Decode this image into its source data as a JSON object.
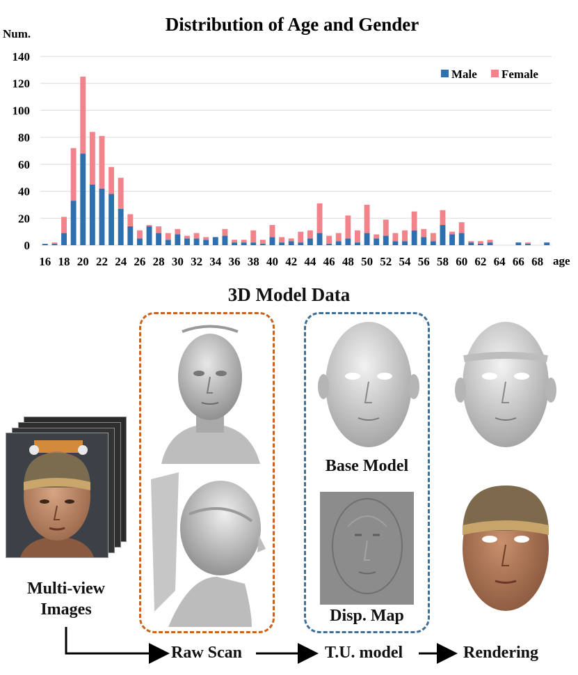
{
  "chart_data": {
    "type": "bar",
    "stacked": true,
    "title": "Distribution of Age and Gender",
    "ylabel": "Num.",
    "xlabel": "age",
    "ylim": [
      0,
      140
    ],
    "yticks": [
      0,
      20,
      40,
      60,
      80,
      100,
      120,
      140
    ],
    "xticks": [
      "16",
      "18",
      "20",
      "22",
      "24",
      "26",
      "28",
      "30",
      "32",
      "34",
      "36",
      "38",
      "40",
      "42",
      "44",
      "46",
      "48",
      "50",
      "52",
      "54",
      "56",
      "58",
      "60",
      "62",
      "64",
      "66",
      "68"
    ],
    "categories": [
      "16",
      "17",
      "18",
      "19",
      "20",
      "21",
      "22",
      "23",
      "24",
      "25",
      "26",
      "27",
      "28",
      "29",
      "30",
      "31",
      "32",
      "33",
      "34",
      "35",
      "36",
      "37",
      "38",
      "39",
      "40",
      "41",
      "42",
      "43",
      "44",
      "45",
      "46",
      "47",
      "48",
      "49",
      "50",
      "51",
      "52",
      "53",
      "54",
      "55",
      "56",
      "57",
      "58",
      "59",
      "60",
      "61",
      "62",
      "63",
      "64",
      "65",
      "66",
      "67",
      "68",
      "69"
    ],
    "series": [
      {
        "name": "Male",
        "color": "#2e6fb0",
        "values": [
          1,
          1,
          9,
          33,
          68,
          45,
          42,
          38,
          27,
          14,
          5,
          14,
          9,
          4,
          8,
          5,
          5,
          4,
          6,
          7,
          2,
          2,
          2,
          1,
          6,
          2,
          3,
          2,
          5,
          9,
          1,
          3,
          5,
          2,
          9,
          5,
          7,
          3,
          3,
          11,
          6,
          3,
          15,
          8,
          9,
          2,
          1,
          2,
          0,
          0,
          2,
          1,
          0,
          2
        ]
      },
      {
        "name": "Female",
        "color": "#f2838b",
        "values": [
          0,
          1,
          12,
          39,
          57,
          39,
          39,
          20,
          23,
          9,
          6,
          1,
          5,
          5,
          4,
          2,
          4,
          2,
          0,
          5,
          2,
          2,
          9,
          3,
          9,
          4,
          2,
          8,
          6,
          22,
          6,
          6,
          17,
          9,
          21,
          3,
          12,
          6,
          8,
          14,
          6,
          6,
          11,
          2,
          8,
          1,
          2,
          2,
          0,
          0,
          0,
          1,
          0,
          0
        ]
      }
    ],
    "legend": "top-right",
    "grid": true
  },
  "section_title": "3D Model Data",
  "labels": {
    "base_model": "Base Model",
    "disp_map": "Disp. Map",
    "multiview_line1": "Multi-view",
    "multiview_line2": "Images",
    "raw_scan": "Raw Scan",
    "tu_model": "T.U. model",
    "rendering": "Rendering"
  },
  "colors": {
    "raw_scan_box": "#c8641e",
    "tu_model_box": "#3d6f99",
    "gridline": "#d9d9d9"
  }
}
